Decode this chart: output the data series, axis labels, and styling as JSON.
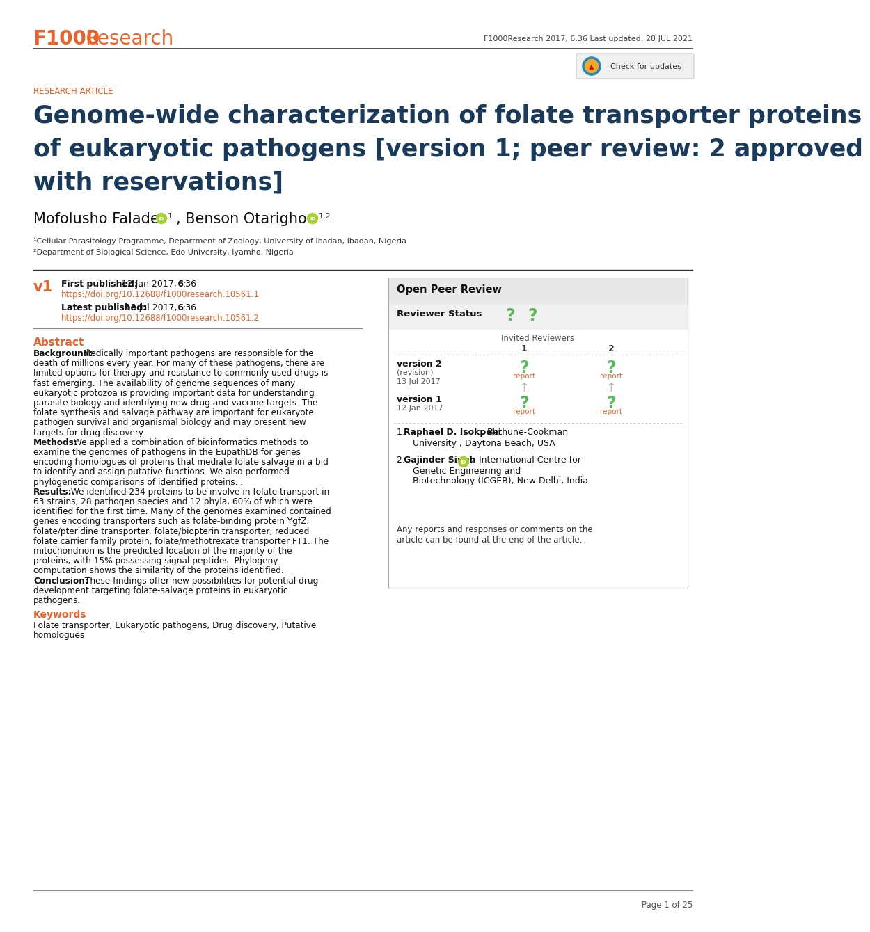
{
  "bg_color": "#ffffff",
  "header_logo_f1000": "F1000",
  "header_logo_research": "Research",
  "header_logo_color": "#e8622a",
  "header_right_text": "F1000Research 2017, 6:36 Last updated: 28 JUL 2021",
  "research_article_label": "RESEARCH ARTICLE",
  "title_line1": "Genome-wide characterization of folate transporter proteins",
  "title_line2": "of eukaryotic pathogens [version 1; peer review: 2 approved",
  "title_line3": "with reservations]",
  "title_color": "#1a3a5c",
  "author1_name": "Mofolusho Falade",
  "author1_sup": "1",
  "author2_name": "Benson Otarigho",
  "author2_sup": "1,2",
  "affil1": "¹Cellular Parasitology Programme, Department of Zoology, University of Ibadan, Ibadan, Nigeria",
  "affil2": "²Department of Biological Science, Edo University, Iyamho, Nigeria",
  "v1_label": "v1",
  "first_pub_label": "First published:",
  "first_pub_date": " 12 Jan 2017, ",
  "first_pub_bold": "6",
  "first_pub_end": ":36",
  "first_pub_doi": "https://doi.org/10.12688/f1000research.10561.1",
  "latest_pub_label": "Latest published:",
  "latest_pub_date": " 13 Jul 2017, ",
  "latest_pub_bold": "6",
  "latest_pub_end": ":36",
  "latest_pub_doi": "https://doi.org/10.12688/f1000research.10561.2",
  "abstract_title": "Abstract",
  "abstract_bg_bold": "Background:",
  "abstract_bg_text": " Medically important pathogens are responsible for the death of millions every year. For many of these pathogens, there are limited options for therapy and resistance to commonly used drugs is fast emerging. The availability of genome sequences of many eukaryotic protozoa is providing important data for understanding parasite biology and identifying new drug and vaccine targets. The folate synthesis and salvage pathway are important for eukaryote pathogen survival and organismal biology and may present new targets for drug discovery.",
  "abstract_meth_bold": "Methods:",
  "abstract_meth_text": " We applied a combination of bioinformatics methods to examine the genomes of pathogens in the EupathDB for genes encoding homologues of proteins that mediate folate salvage in a bid to identify and assign putative functions. We also performed phylogenetic comparisons of identified proteins. .",
  "abstract_res_bold": "Results:",
  "abstract_res_text": " We identified 234 proteins to be involve in folate transport in 63 strains, 28 pathogen species and 12 phyla, 60% of which were identified for the first time. Many of the genomes examined contained genes encoding transporters such as folate-binding protein YgfZ, folate/pteridine transporter, folate/biopterin transporter, reduced folate carrier family protein, folate/methotrexate transporter FT1. The mitochondrion is the predicted location of the majority of the proteins, with 15% possessing signal peptides. Phylogeny computation shows the similarity of the proteins identified.",
  "abstract_conc_bold": "Conclusion:",
  "abstract_conc_text": " These findings offer new possibilities for potential drug development targeting folate-salvage proteins in eukaryotic pathogens.",
  "keywords_title": "Keywords",
  "keywords_line1": "Folate transporter, Eukaryotic pathogens, Drug discovery, Putative",
  "keywords_line2": "homologues",
  "open_peer_review": "Open Peer Review",
  "reviewer_status": "Reviewer Status",
  "invited_reviewers": "Invited Reviewers",
  "col1": "1",
  "col2": "2",
  "ver2_label": "version 2",
  "ver2_sub": "(revision)",
  "ver2_date": "13 Jul 2017",
  "ver1_label": "version 1",
  "ver1_date": "12 Jan 2017",
  "report": "report",
  "rev1_bold": "Raphael D. Isokpehi",
  "rev1_rest": ", Bethune-Cookman",
  "rev1_line2": "University , Daytona Beach, USA",
  "rev2_bold": "Gajinder Singh",
  "rev2_rest": ",  International Centre for",
  "rev2_line2": "Genetic Engineering and",
  "rev2_line3": "Biotechnology (ICGEB), New Delhi, India",
  "any_reports1": "Any reports and responses or comments on the",
  "any_reports2": "article can be found at the end of the article.",
  "page_text": "Page 1 of 25",
  "orange": "#e8622a",
  "dark_blue": "#1a3a5c",
  "green_q": "#5cb85c",
  "gray_arrow": "#bbbbbb",
  "light_gray_bg": "#f0f0f0",
  "box_gray_bg": "#f5f5f5",
  "border_color": "#cccccc",
  "text_dark": "#111111",
  "text_gray": "#555555",
  "orcid_green": "#a6ce39"
}
